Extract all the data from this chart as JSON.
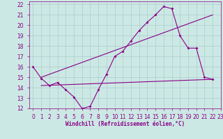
{
  "xlabel": "Windchill (Refroidissement éolien,°C)",
  "ylabel": "",
  "xlim": [
    -0.5,
    23
  ],
  "ylim": [
    12,
    22.3
  ],
  "xticks": [
    0,
    1,
    2,
    3,
    4,
    5,
    6,
    7,
    8,
    9,
    10,
    11,
    12,
    13,
    14,
    15,
    16,
    17,
    18,
    19,
    20,
    21,
    22,
    23
  ],
  "yticks": [
    12,
    13,
    14,
    15,
    16,
    17,
    18,
    19,
    20,
    21,
    22
  ],
  "bg_color": "#cce8e4",
  "grid_color": "#aacccc",
  "line_color": "#880088",
  "line1_x": [
    0,
    1,
    2,
    3,
    4,
    5,
    6,
    7,
    8,
    9,
    10,
    11,
    12,
    13,
    14,
    15,
    16,
    17,
    18,
    19,
    20,
    21,
    22
  ],
  "line1_y": [
    16.0,
    14.9,
    14.2,
    14.5,
    13.8,
    13.1,
    12.0,
    12.2,
    13.8,
    15.3,
    17.0,
    17.5,
    18.5,
    19.5,
    20.3,
    21.0,
    21.8,
    21.6,
    19.0,
    17.8,
    17.8,
    15.0,
    14.8
  ],
  "line2_x": [
    1,
    22
  ],
  "line2_y": [
    14.2,
    14.8
  ],
  "line3_x": [
    1,
    22
  ],
  "line3_y": [
    15.0,
    21.0
  ],
  "tick_fontsize": 5.5,
  "xlabel_fontsize": 5.5
}
